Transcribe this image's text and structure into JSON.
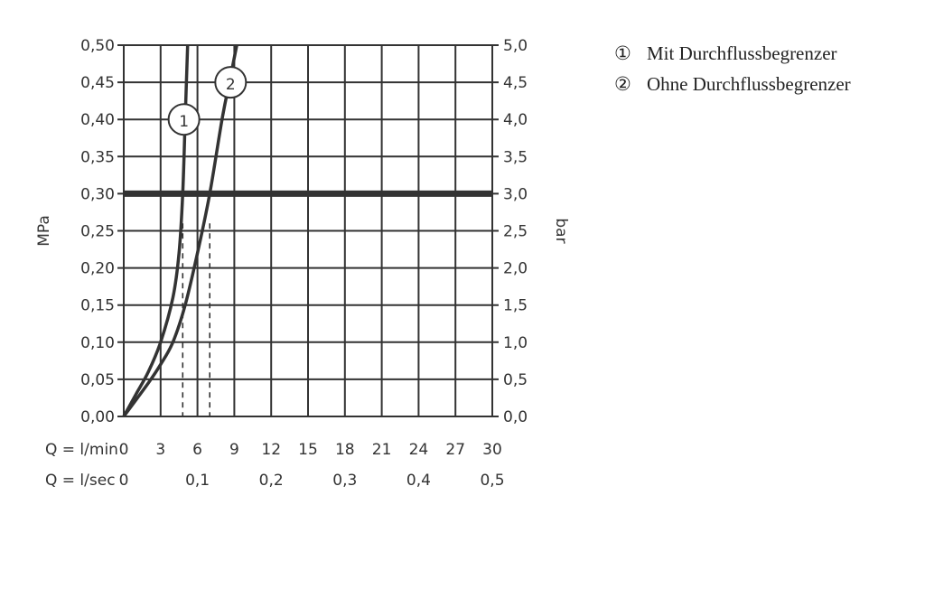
{
  "chart_data": {
    "type": "line",
    "xlabel": "Q = l/min",
    "xlabel2": "Q = l/sec",
    "ylabel": "MPa",
    "ylabel2": "bar",
    "xlim": [
      0,
      30
    ],
    "ylim": [
      0,
      0.5
    ],
    "x_ticks": [
      "0",
      "3",
      "6",
      "9",
      "12",
      "15",
      "18",
      "21",
      "24",
      "27",
      "30"
    ],
    "x2_ticks": [
      "0",
      "0,1",
      "0,2",
      "0,3",
      "0,4",
      "0,5"
    ],
    "y_ticks": [
      "0,00",
      "0,05",
      "0,10",
      "0,15",
      "0,20",
      "0,25",
      "0,30",
      "0,35",
      "0,40",
      "0,45",
      "0,50"
    ],
    "y2_ticks": [
      "0,0",
      "0,5",
      "1,0",
      "1,5",
      "2,0",
      "2,5",
      "3,0",
      "3,5",
      "4,0",
      "4,5",
      "5,0"
    ],
    "grid": true,
    "reference_line": {
      "y": 0.3
    },
    "series": [
      {
        "name": "1",
        "label_pos": [
          4.9,
          0.4
        ],
        "dashed_x": 4.8,
        "points": [
          [
            0,
            0
          ],
          [
            1,
            0.03
          ],
          [
            2,
            0.06
          ],
          [
            3,
            0.1
          ],
          [
            4,
            0.16
          ],
          [
            4.5,
            0.22
          ],
          [
            4.8,
            0.3
          ],
          [
            5.0,
            0.4
          ],
          [
            5.1,
            0.45
          ],
          [
            5.2,
            0.5
          ]
        ]
      },
      {
        "name": "2",
        "label_pos": [
          8.7,
          0.45
        ],
        "dashed_x": 7.0,
        "points": [
          [
            0,
            0
          ],
          [
            2,
            0.045
          ],
          [
            3,
            0.07
          ],
          [
            4,
            0.1
          ],
          [
            5,
            0.15
          ],
          [
            6,
            0.22
          ],
          [
            7,
            0.3
          ],
          [
            8,
            0.4
          ],
          [
            8.6,
            0.45
          ],
          [
            9.2,
            0.5
          ]
        ]
      }
    ],
    "legend": [
      {
        "marker": "①",
        "text": "Mit Durchflussbegrenzer"
      },
      {
        "marker": "②",
        "text": "Ohne Durchflussbegrenzer"
      }
    ],
    "legend_placement": "right",
    "color": "#333333"
  }
}
